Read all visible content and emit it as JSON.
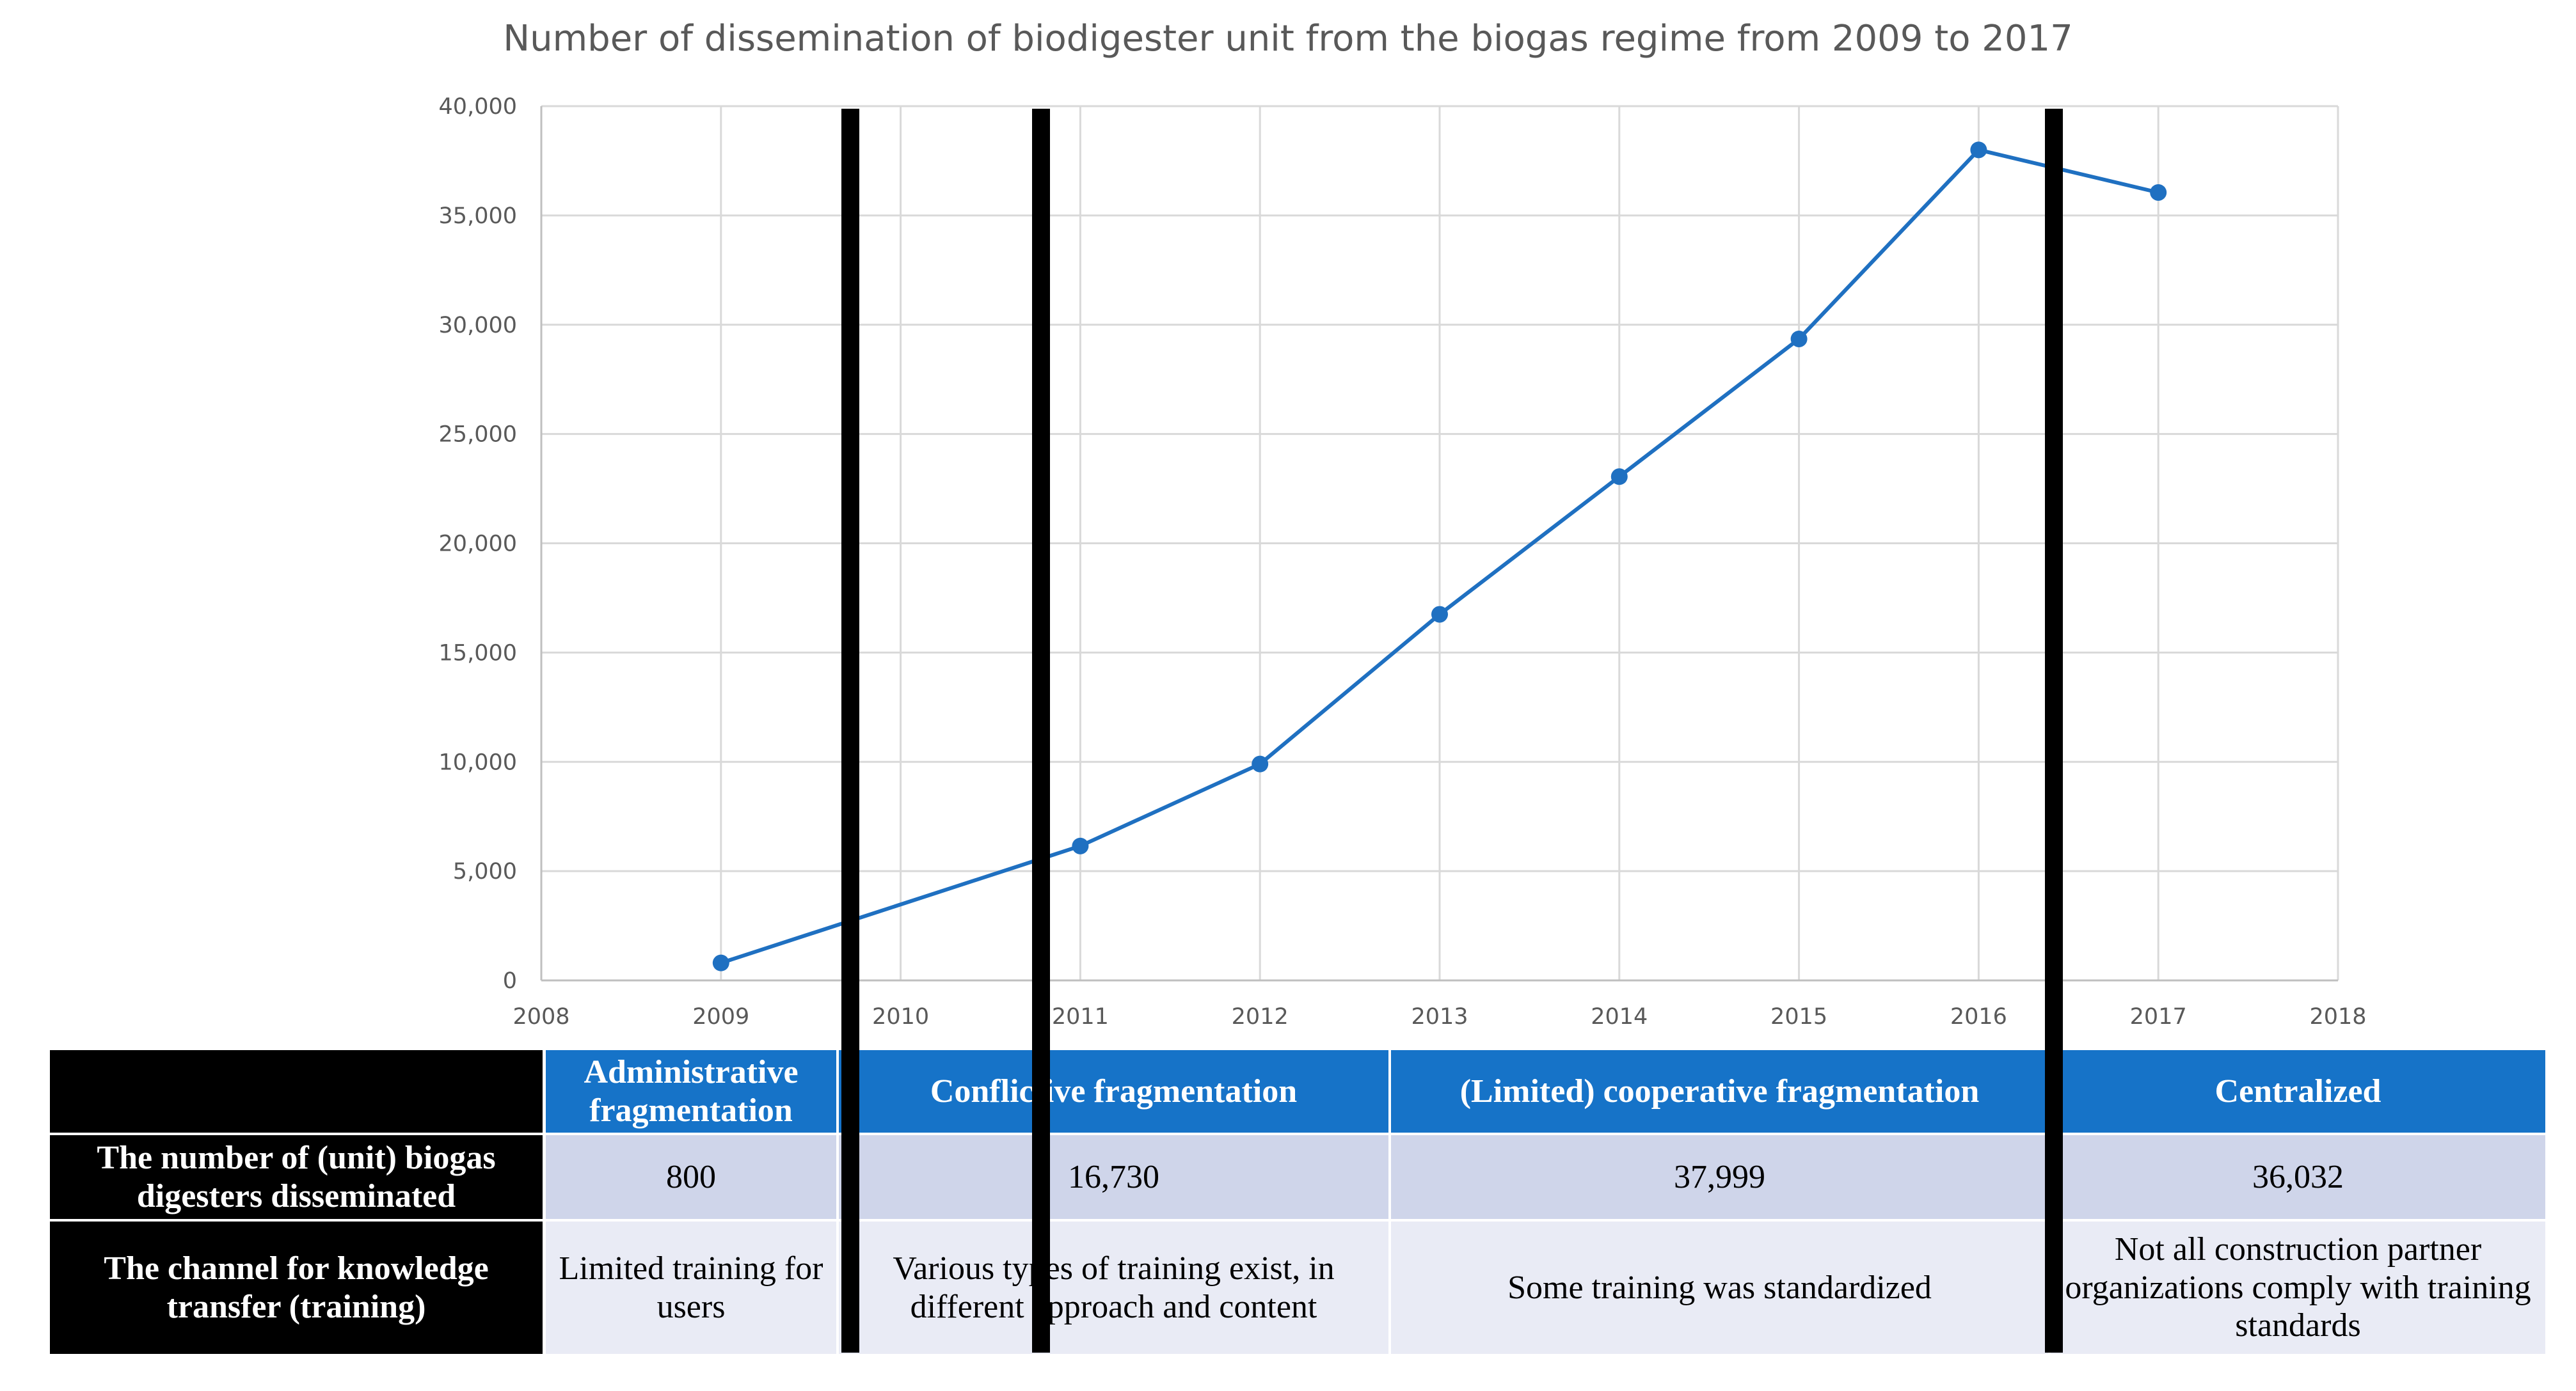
{
  "chart_data": {
    "type": "line",
    "title": "Number of dissemination of biodigester unit from the biogas regime from 2009 to 2017",
    "xlabel": "",
    "ylabel": "",
    "xlim": [
      2008,
      2018
    ],
    "ylim": [
      0,
      40000
    ],
    "x_ticks": [
      "2008",
      "2009",
      "2010",
      "2011",
      "2012",
      "2013",
      "2014",
      "2015",
      "2016",
      "2017",
      "2018"
    ],
    "y_ticks": [
      "0",
      "5,000",
      "10,000",
      "15,000",
      "20,000",
      "25,000",
      "30,000",
      "35,000",
      "40,000"
    ],
    "grid": true,
    "legend": "none",
    "series": [
      {
        "x": [
          2009,
          2011,
          2012,
          2013,
          2014,
          2015,
          2016,
          2017
        ],
        "y": [
          800,
          6150,
          9900,
          16750,
          23050,
          29350,
          38000,
          36050
        ],
        "color": "#1f70c1"
      }
    ],
    "phase_dividers_x": [
      2009.72,
      2010.78,
      2016.42
    ]
  },
  "table": {
    "phases": [
      "Administrative fragmentation",
      "Conflictive fragmentation",
      "(Limited) cooperative fragmentation",
      "Centralized"
    ],
    "rows": [
      {
        "label": "The number of (unit) biogas digesters disseminated",
        "values": [
          "800",
          "16,730",
          "37,999",
          "36,032"
        ]
      },
      {
        "label": "The channel for knowledge transfer (training)",
        "values": [
          "Limited training for users",
          "Various types of training exist, in different approach and content",
          "Some training was standardized",
          "Not all construction partner organizations comply with training standards"
        ]
      }
    ]
  },
  "colors": {
    "line": "#1f70c1",
    "header_blue": "#1673c8",
    "row_value_bg": "#cfd5ea",
    "row_text_bg": "#e9ebf5",
    "grid": "#d9d9d9"
  }
}
